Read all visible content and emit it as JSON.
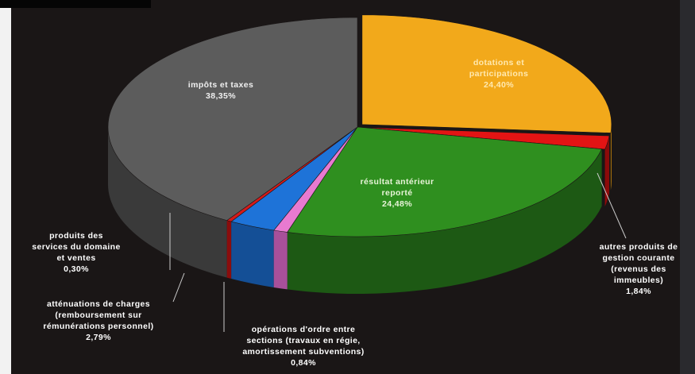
{
  "chart_data": {
    "type": "pie",
    "title": "",
    "slices": [
      {
        "id": "dotations",
        "label": "dotations et\nparticipations",
        "value": 24.4,
        "value_label": "24,40%",
        "color": "#f2a91b",
        "side": "#b87a0c"
      },
      {
        "id": "autres",
        "label": "autres produits de\ngestion courante\n(revenus des\nimmeubles)",
        "value": 1.84,
        "value_label": "1,84%",
        "color": "#e31414",
        "side": "#8c0a0a"
      },
      {
        "id": "resultat",
        "label": "résultat antérieur\nreporté",
        "value": 24.48,
        "value_label": "24,48%",
        "color": "#2f8f1f",
        "side": "#1d5914"
      },
      {
        "id": "operations",
        "label": "opérations d'ordre entre\nsections (travaux en régie,\namortissement subventions)",
        "value": 0.84,
        "value_label": "0,84%",
        "color": "#e87ad0",
        "side": "#a8509a"
      },
      {
        "id": "attenuations",
        "label": "atténuations de charges\n(remboursement sur\nrémunérations personnel)",
        "value": 2.79,
        "value_label": "2,79%",
        "color": "#1e73d8",
        "side": "#144f96"
      },
      {
        "id": "produits_services",
        "label": "produits des\nservices du domaine\net ventes",
        "value": 0.3,
        "value_label": "0,30%",
        "color": "#d41a1a",
        "side": "#8a0d0d"
      },
      {
        "id": "impots",
        "label": "impôts et taxes",
        "value": 38.35,
        "value_label": "38,35%",
        "color": "#5c5c5c",
        "side": "#3a3a3a"
      }
    ]
  }
}
